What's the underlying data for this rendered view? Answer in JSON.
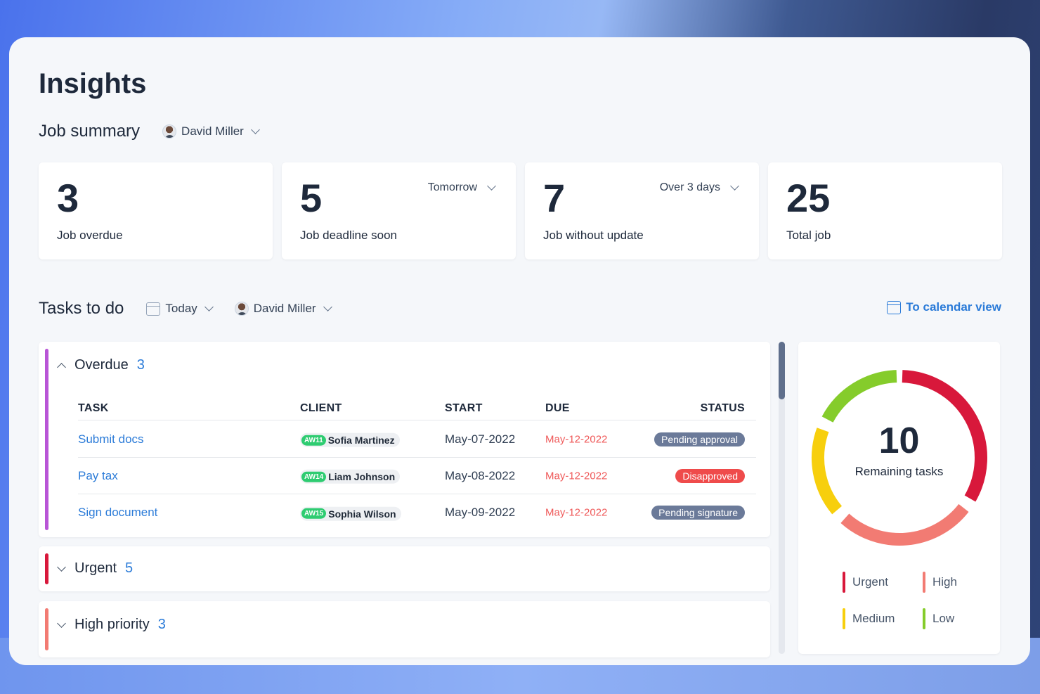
{
  "page_title": "Insights",
  "job_summary": {
    "title": "Job summary",
    "user": "David Miller",
    "cards": [
      {
        "value": "3",
        "label": "Job overdue",
        "filter": ""
      },
      {
        "value": "5",
        "label": "Job deadline soon",
        "filter": "Tomorrow"
      },
      {
        "value": "7",
        "label": "Job without update",
        "filter": "Over 3 days"
      },
      {
        "value": "25",
        "label": "Total job",
        "filter": ""
      }
    ]
  },
  "tasks": {
    "title": "Tasks to do",
    "date_filter": "Today",
    "user": "David Miller",
    "calendar_link": "To calendar view",
    "columns": {
      "task": "TASK",
      "client": "CLIENT",
      "start": "START",
      "due": "DUE",
      "status": "STATUS"
    },
    "groups": [
      {
        "name": "Overdue",
        "count": "3",
        "accent": "#b855d6",
        "rows": [
          {
            "task": "Submit docs",
            "client_tag": "AW11",
            "client": "Sofia Martinez",
            "start": "May-07-2022",
            "due": "May-12-2022",
            "status": "Pending approval",
            "status_color": "#6b7a99"
          },
          {
            "task": "Pay tax",
            "client_tag": "AW14",
            "client": "Liam Johnson",
            "start": "May-08-2022",
            "due": "May-12-2022",
            "status": "Disapproved",
            "status_color": "#ef4b4b"
          },
          {
            "task": "Sign document",
            "client_tag": "AW15",
            "client": "Sophia Wilson",
            "start": "May-09-2022",
            "due": "May-12-2022",
            "status": "Pending signature",
            "status_color": "#6b7a99"
          }
        ]
      },
      {
        "name": "Urgent",
        "count": "5",
        "accent": "#d8183b"
      },
      {
        "name": "High priority",
        "count": "3",
        "accent": "#f27b73"
      }
    ]
  },
  "remaining": {
    "value": "10",
    "label": "Remaining tasks",
    "legend": [
      {
        "label": "Urgent",
        "color": "#d8183b"
      },
      {
        "label": "High",
        "color": "#f27b73"
      },
      {
        "label": "Medium",
        "color": "#f7cf0d"
      },
      {
        "label": "Low",
        "color": "#85cc2b"
      }
    ]
  }
}
